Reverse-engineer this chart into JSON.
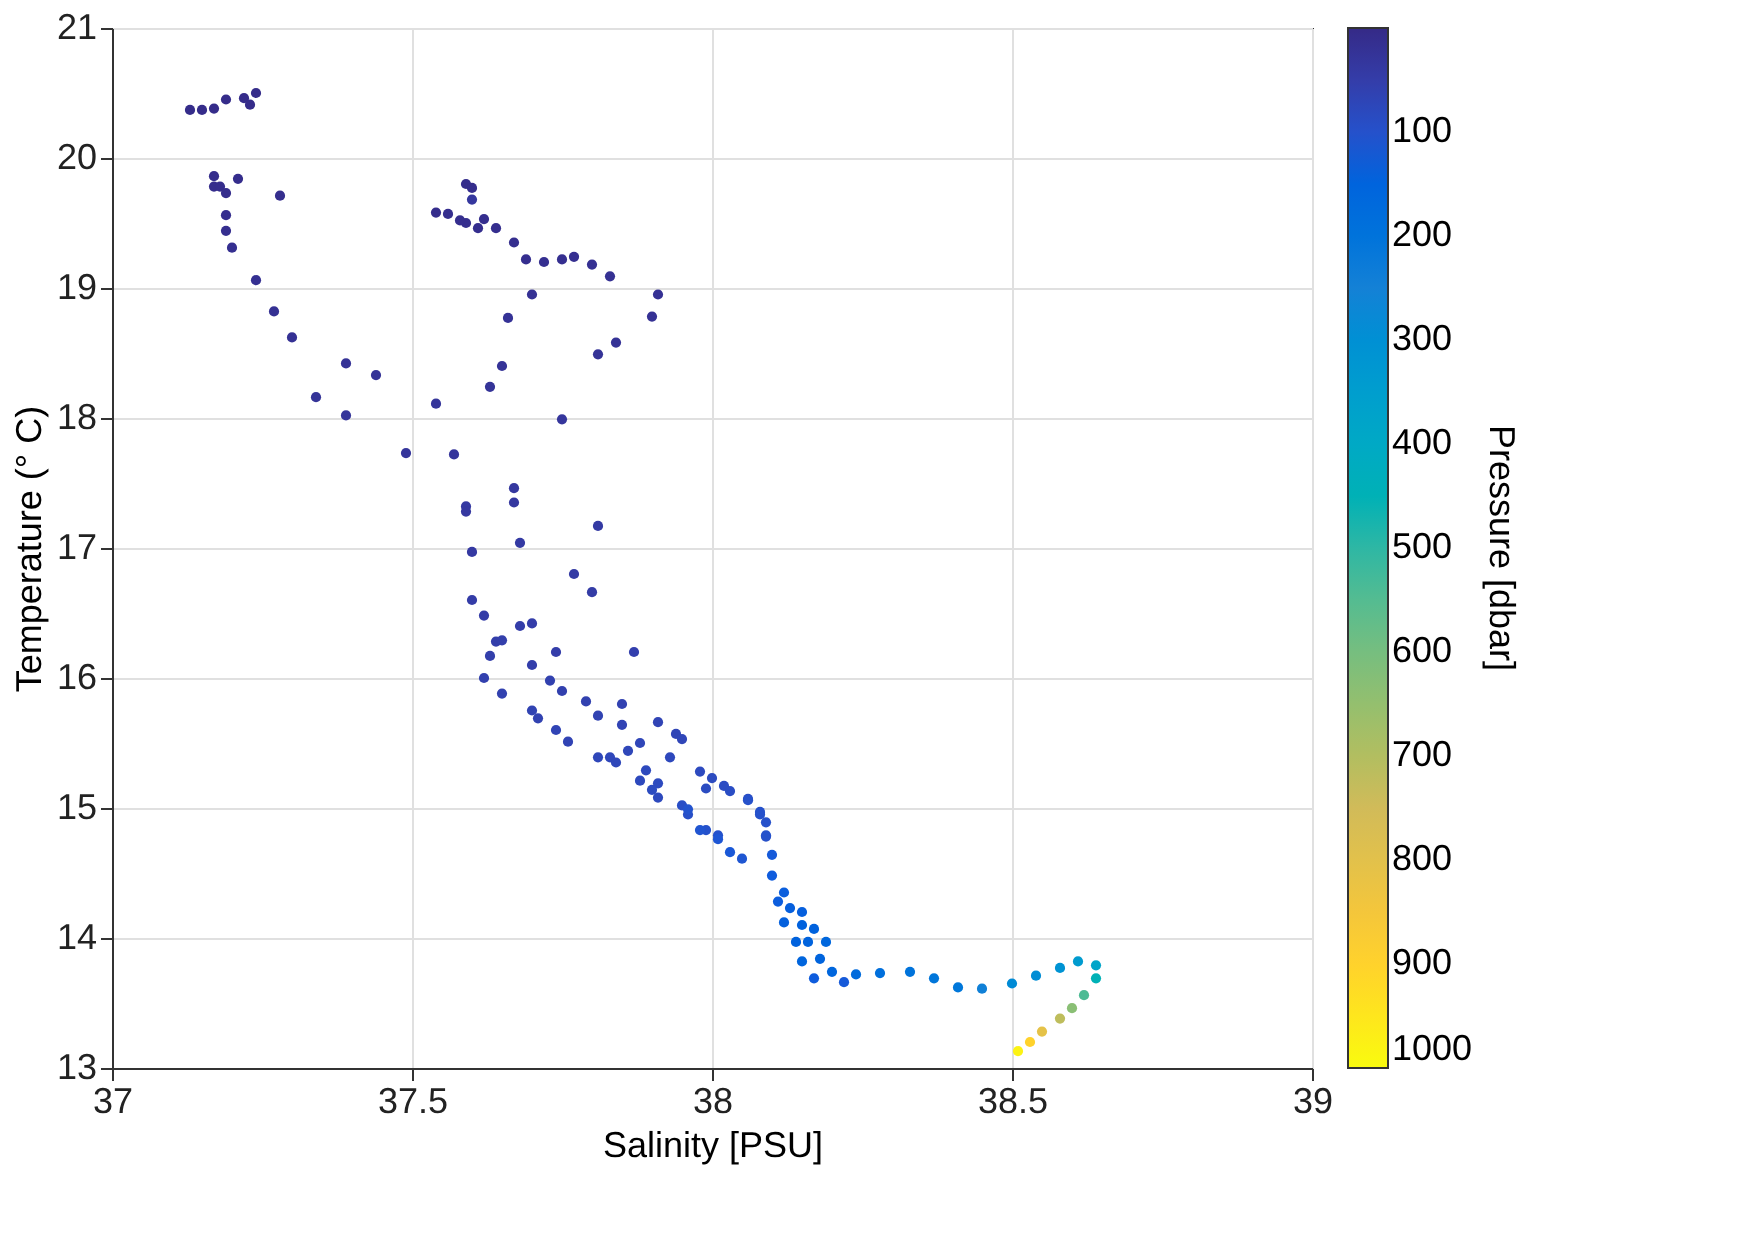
{
  "chart_data": {
    "type": "scatter",
    "xlabel": "Salinity [PSU]",
    "ylabel": "Temperature (° C)",
    "clabel": "Pressure [dbar]",
    "xlim": [
      37,
      39
    ],
    "xticks": [
      {
        "value": 37,
        "label": "37"
      },
      37.5,
      {
        "value": 38,
        "label": "38"
      },
      38.5,
      {
        "value": 39,
        "label": "39"
      }
    ],
    "ylim": [
      13,
      21
    ],
    "yticks": [
      13,
      14,
      15,
      16,
      17,
      18,
      19,
      20,
      21
    ],
    "clim": [
      0,
      1000
    ],
    "cticks": [
      100,
      200,
      300,
      400,
      500,
      600,
      700,
      800,
      900,
      1000
    ],
    "grid": true,
    "marker": "circle",
    "series": [
      {
        "x": [
          37.13,
          37.15,
          37.17,
          37.19,
          37.22,
          37.23,
          37.24,
          37.17,
          37.17,
          37.18,
          37.19,
          37.21,
          37.28,
          37.19,
          37.19,
          37.2,
          37.24,
          37.27,
          37.3,
          37.39,
          37.44,
          37.34,
          37.39,
          37.49,
          37.57,
          37.54,
          37.63,
          37.65,
          37.66,
          37.7,
          37.75,
          37.9,
          37.91,
          37.84,
          37.81,
          37.83,
          37.8,
          37.77,
          37.75,
          37.72,
          37.69,
          37.67,
          37.64,
          37.62,
          37.61,
          37.59,
          37.58,
          37.56,
          37.54,
          37.59,
          37.6,
          37.6,
          37.67,
          37.67,
          37.59,
          37.59,
          37.81,
          37.6,
          37.68,
          37.77,
          37.8,
          37.6,
          37.62,
          37.68,
          37.7,
          37.64,
          37.65,
          37.63,
          37.7,
          37.74,
          37.87,
          37.62,
          37.73,
          37.75,
          37.65,
          37.79,
          37.85,
          37.7,
          37.71,
          37.81,
          37.85,
          37.74,
          37.76,
          37.91,
          37.94,
          37.95,
          37.88,
          37.86,
          37.81,
          37.83,
          37.84,
          37.93,
          37.89,
          37.88,
          37.91,
          37.9,
          37.91,
          37.98,
          38.0,
          37.99,
          38.02,
          38.03,
          38.06,
          37.95,
          37.96,
          38.08,
          38.09,
          37.99,
          38.01,
          38.09,
          38.06,
          38.08,
          37.96,
          37.98,
          38.01,
          38.03,
          38.05,
          38.09,
          38.1,
          38.1,
          38.12,
          38.13,
          38.15,
          38.16,
          38.18,
          38.2,
          38.22,
          38.11,
          38.12,
          38.14,
          38.15,
          38.17,
          38.15,
          38.17,
          38.19,
          38.24,
          38.28,
          38.33,
          38.37,
          38.41,
          38.45,
          38.5,
          38.54,
          38.58,
          38.61,
          38.64,
          38.64,
          38.62,
          38.6,
          38.58,
          38.55,
          38.53,
          38.51
        ],
        "values": [
          20.37,
          20.37,
          20.38,
          20.45,
          20.46,
          20.41,
          20.5,
          19.86,
          19.78,
          19.78,
          19.73,
          19.84,
          19.71,
          19.56,
          19.44,
          19.31,
          19.06,
          18.82,
          18.62,
          18.42,
          18.33,
          18.16,
          18.02,
          17.73,
          17.72,
          18.11,
          18.24,
          18.4,
          18.77,
          18.95,
          17.99,
          18.78,
          18.95,
          18.58,
          18.49,
          19.09,
          19.18,
          19.24,
          19.22,
          19.2,
          19.22,
          19.35,
          19.46,
          19.53,
          19.46,
          19.5,
          19.52,
          19.57,
          19.58,
          19.8,
          19.77,
          19.68,
          17.46,
          17.35,
          17.32,
          17.28,
          17.17,
          16.97,
          17.04,
          16.8,
          16.66,
          16.6,
          16.48,
          16.4,
          16.42,
          16.28,
          16.29,
          16.17,
          16.1,
          16.2,
          16.2,
          16.0,
          15.98,
          15.9,
          15.88,
          15.82,
          15.8,
          15.75,
          15.69,
          15.71,
          15.64,
          15.6,
          15.51,
          15.66,
          15.57,
          15.53,
          15.5,
          15.44,
          15.39,
          15.39,
          15.35,
          15.39,
          15.29,
          15.21,
          15.19,
          15.14,
          15.08,
          15.28,
          15.23,
          15.15,
          15.17,
          15.13,
          15.07,
          15.02,
          14.95,
          14.95,
          14.89,
          14.83,
          14.79,
          14.78,
          15.06,
          14.97,
          14.99,
          14.83,
          14.76,
          14.66,
          14.61,
          14.79,
          14.64,
          14.48,
          14.35,
          14.23,
          14.1,
          13.97,
          13.84,
          13.74,
          13.66,
          14.28,
          14.12,
          13.97,
          13.82,
          13.69,
          14.2,
          14.07,
          13.97,
          13.72,
          13.73,
          13.74,
          13.69,
          13.62,
          13.61,
          13.65,
          13.71,
          13.77,
          13.82,
          13.79,
          13.69,
          13.56,
          13.46,
          13.38,
          13.28,
          13.2,
          13.13
        ],
        "cvalues": [
          5,
          5,
          5,
          5,
          5,
          5,
          5,
          8,
          8,
          8,
          8,
          8,
          10,
          10,
          12,
          14,
          16,
          18,
          20,
          22,
          24,
          26,
          28,
          30,
          30,
          28,
          26,
          24,
          22,
          20,
          32,
          20,
          20,
          22,
          24,
          18,
          16,
          14,
          14,
          14,
          12,
          10,
          10,
          10,
          10,
          10,
          10,
          10,
          8,
          8,
          8,
          34,
          36,
          38,
          40,
          38,
          42,
          40,
          42,
          44,
          46,
          48,
          48,
          50,
          50,
          52,
          54,
          54,
          52,
          50,
          56,
          58,
          60,
          58,
          60,
          60,
          62,
          64,
          62,
          64,
          66,
          68,
          66,
          68,
          70,
          72,
          72,
          74,
          74,
          76,
          74,
          78,
          80,
          80,
          82,
          84,
          80,
          82,
          84,
          86,
          88,
          90,
          90,
          92,
          94,
          100,
          98,
          100,
          100,
          96,
          98,
          100,
          104,
          108,
          112,
          116,
          110,
          100,
          120,
          125,
          130,
          135,
          140,
          145,
          150,
          155,
          120,
          128,
          136,
          144,
          152,
          126,
          134,
          142,
          160,
          170,
          185,
          200,
          210,
          212,
          245,
          280,
          290,
          310,
          340,
          380,
          450,
          540,
          630,
          720,
          810,
          900,
          980
        ]
      }
    ]
  }
}
